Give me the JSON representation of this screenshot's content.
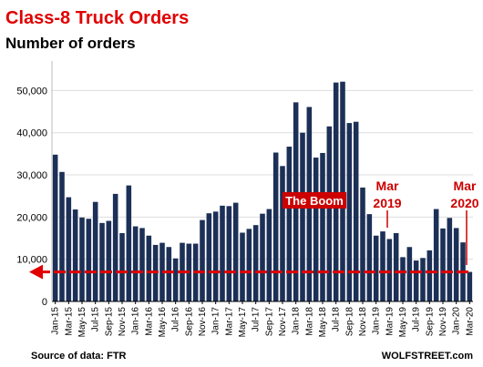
{
  "chart_data": {
    "type": "bar",
    "title": "Class-8 Truck Orders",
    "subtitle": "Number of orders",
    "source": "Source of data: FTR",
    "brand": "WOLFSTREET.com",
    "ylim": [
      0,
      57000
    ],
    "yticks": [
      0,
      10000,
      20000,
      30000,
      40000,
      50000
    ],
    "ytick_labels": [
      "0",
      "10,000",
      "20,000",
      "30,000",
      "40,000",
      "50,000"
    ],
    "x_tick_labels": [
      "Jan-15",
      "Mar-15",
      "May-15",
      "Jul-15",
      "Sep-15",
      "Nov-15",
      "Jan-16",
      "Mar-16",
      "May-16",
      "Jul-16",
      "Sep-16",
      "Nov-16",
      "Jan-17",
      "Mar-17",
      "May-17",
      "Jul-17",
      "Sep-17",
      "Nov-17",
      "Jan-18",
      "Mar-18",
      "May-18",
      "Jul-18",
      "Sep-18",
      "Nov-18",
      "Jan-19",
      "Mar-19",
      "May-19",
      "Jul-19",
      "Sep-19",
      "Nov-19",
      "Jan-20",
      "Mar-20"
    ],
    "values": [
      34800,
      30700,
      24700,
      21800,
      19900,
      19600,
      23600,
      18600,
      19100,
      25500,
      16200,
      27500,
      17800,
      17400,
      15600,
      13400,
      13900,
      12900,
      10200,
      13900,
      13700,
      13700,
      19300,
      20900,
      21300,
      22700,
      22600,
      23400,
      16300,
      17200,
      18100,
      20800,
      21900,
      35300,
      32100,
      36700,
      47200,
      40000,
      46100,
      34100,
      35200,
      41500,
      51900,
      52100,
      42300,
      42600,
      27000,
      20700,
      15600,
      16600,
      14800,
      16200,
      10500,
      12900,
      9700,
      10300,
      12100,
      21900,
      17300,
      19800,
      17400,
      14000,
      7000
    ],
    "bar_color": "#1c3057",
    "annotations": [
      {
        "text": "The Boom",
        "color": "#cc0000",
        "fill": "#cc0000",
        "text_color": "#ffffff"
      },
      {
        "text": "Mar",
        "color": "#cc0000"
      },
      {
        "text": "2019",
        "color": "#cc0000"
      },
      {
        "text": "Mar",
        "color": "#cc0000"
      },
      {
        "text": "2020",
        "color": "#cc0000"
      }
    ],
    "reference_line": {
      "value": 7000,
      "color": "#e00000"
    },
    "title_color": "#e00000"
  }
}
